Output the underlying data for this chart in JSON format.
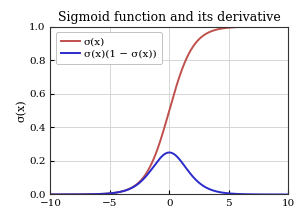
{
  "title": "Sigmoid function and its derivative",
  "xlabel": "",
  "ylabel": "σ(x)",
  "xlim": [
    -10,
    10
  ],
  "ylim": [
    0,
    1
  ],
  "xticks": [
    -10,
    -5,
    0,
    5,
    10
  ],
  "yticks": [
    0,
    0.2,
    0.4,
    0.6,
    0.8,
    1.0
  ],
  "sigmoid_color": "#c0504d",
  "derivative_color": "#2b2bcc",
  "sigmoid_label": "σ(x)",
  "derivative_label": "σ(x)(1 − σ(x))",
  "line_width": 1.4,
  "plot_bg_color": "#ffffff",
  "fig_bg_color": "#ffffff",
  "grid_color": "#d0d0d0",
  "title_fontsize": 9,
  "axis_label_fontsize": 8,
  "tick_fontsize": 7.5,
  "legend_fontsize": 7.5
}
